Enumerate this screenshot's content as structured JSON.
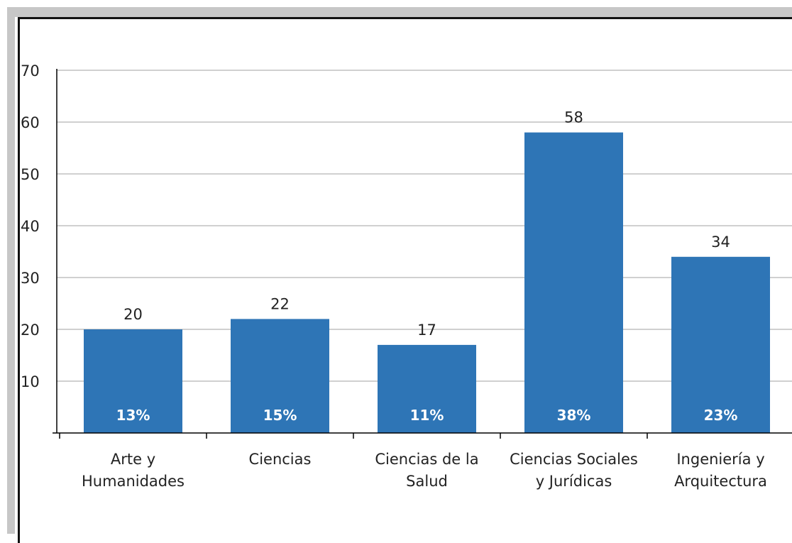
{
  "chart_data": {
    "type": "bar",
    "categories": [
      [
        "Arte y",
        "Humanidades"
      ],
      [
        "Ciencias"
      ],
      [
        "Ciencias de la",
        "Salud"
      ],
      [
        "Ciencias Sociales",
        "y Jurídicas"
      ],
      [
        "Ingeniería y",
        "Arquitectura"
      ]
    ],
    "values": [
      20,
      22,
      17,
      58,
      34
    ],
    "percent_labels": [
      "13%",
      "15%",
      "11%",
      "38%",
      "23%"
    ],
    "yticks": [
      10,
      20,
      30,
      40,
      50,
      60,
      70
    ],
    "ylim": [
      0,
      70
    ],
    "grid": true,
    "bar_color": "#2e75b6",
    "grid_color": "#c0c0c0",
    "axis_color": "#000000"
  }
}
